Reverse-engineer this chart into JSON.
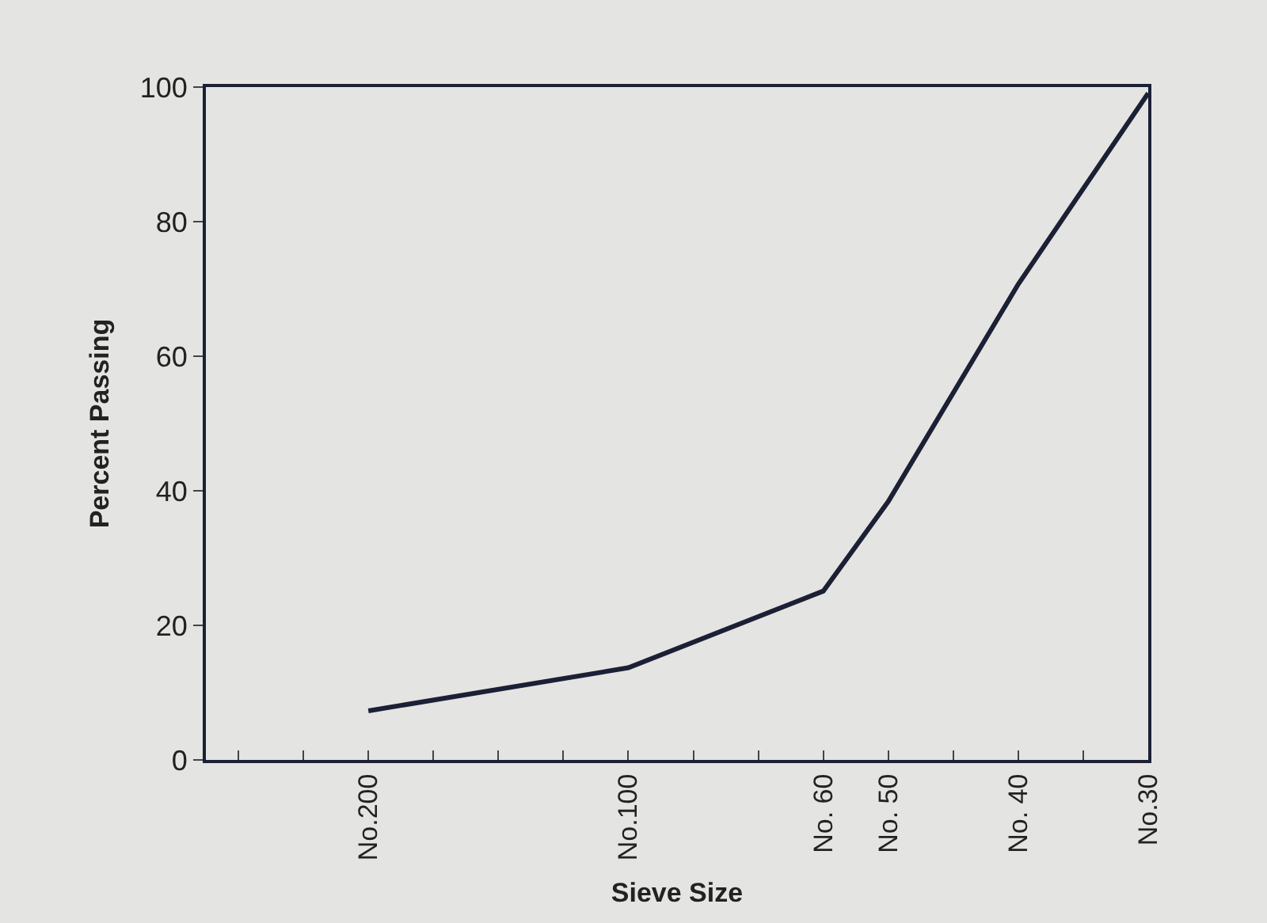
{
  "chart_data": {
    "type": "line",
    "xlabel": "Sieve Size",
    "ylabel": "Percent Passing",
    "categories": [
      null,
      null,
      "No.200",
      null,
      null,
      null,
      "No.100",
      null,
      null,
      "No. 60",
      "No. 50",
      null,
      "No. 40",
      null,
      "No.30"
    ],
    "series": [
      {
        "color": "#1c2035",
        "values": [
          null,
          null,
          7.3,
          null,
          null,
          null,
          13.7,
          null,
          null,
          25.1,
          38.4,
          null,
          70.7,
          null,
          99.1
        ]
      }
    ],
    "ylim": [
      0,
      100
    ],
    "yticks": [
      0,
      20,
      40,
      60,
      80,
      100
    ],
    "grid": false,
    "marker": "none",
    "line_style": "solid"
  }
}
